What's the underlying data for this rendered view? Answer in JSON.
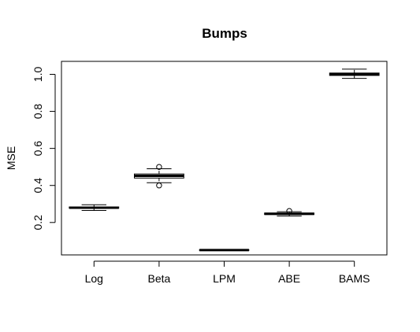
{
  "chart_data": {
    "type": "boxplot",
    "title": "Bumps",
    "xlabel": "",
    "ylabel": "MSE",
    "ylim": [
      0.025,
      1.07
    ],
    "yticks": [
      "0.2",
      "0.4",
      "0.6",
      "0.8",
      "1.0"
    ],
    "grid": false,
    "categories": [
      "Log",
      "Beta",
      "LPM",
      "ABE",
      "BAMS"
    ],
    "boxes": [
      {
        "category": "Log",
        "whisker_low": 0.265,
        "q1": 0.277,
        "median": 0.28,
        "q3": 0.284,
        "whisker_high": 0.296,
        "outliers": []
      },
      {
        "category": "Beta",
        "whisker_low": 0.415,
        "q1": 0.44,
        "median": 0.452,
        "q3": 0.462,
        "whisker_high": 0.49,
        "outliers": [
          0.4,
          0.5
        ]
      },
      {
        "category": "LPM",
        "whisker_low": 0.049,
        "q1": 0.05,
        "median": 0.051,
        "q3": 0.052,
        "whisker_high": 0.053,
        "outliers": []
      },
      {
        "category": "ABE",
        "whisker_low": 0.235,
        "q1": 0.243,
        "median": 0.247,
        "q3": 0.251,
        "whisker_high": 0.258,
        "outliers": [
          0.262
        ]
      },
      {
        "category": "BAMS",
        "whisker_low": 0.978,
        "q1": 0.994,
        "median": 1.0,
        "q3": 1.007,
        "whisker_high": 1.028,
        "outliers": []
      }
    ]
  }
}
